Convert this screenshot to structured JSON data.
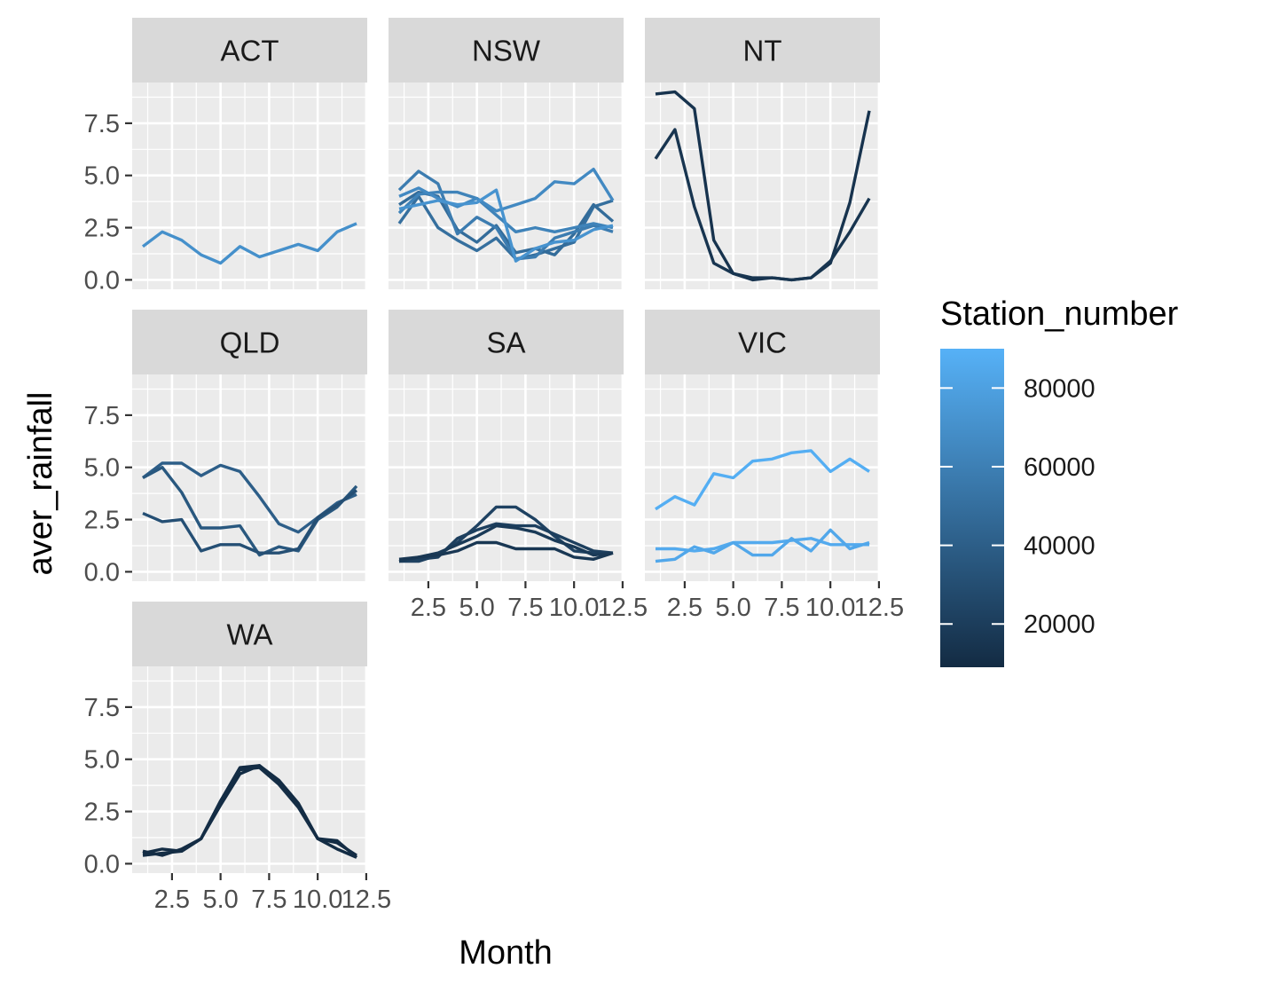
{
  "chart_data": {
    "type": "line",
    "layout": "facet_wrap",
    "xlabel": "Month",
    "ylabel": "aver_rainfall",
    "xlim": [
      0.45,
      12.55
    ],
    "ylim": [
      -0.45,
      9.45
    ],
    "x_ticks": [
      2.5,
      5.0,
      7.5,
      10.0,
      12.5
    ],
    "x_tick_labels": [
      "2.5",
      "5.0",
      "7.5",
      "10.0",
      "12.5"
    ],
    "y_ticks": [
      0.0,
      2.5,
      5.0,
      7.5
    ],
    "y_tick_labels": [
      "0.0",
      "2.5",
      "5.0",
      "7.5"
    ],
    "grid": true,
    "legend": {
      "title": "Station_number",
      "position": "right",
      "type": "colorbar",
      "range": [
        9000,
        90000
      ],
      "low_color": "#132B43",
      "high_color": "#56B1F7",
      "ticks": [
        20000,
        40000,
        60000,
        80000
      ],
      "tick_labels": [
        "20000",
        "40000",
        "60000",
        "80000"
      ]
    },
    "x": [
      1,
      2,
      3,
      4,
      5,
      6,
      7,
      8,
      9,
      10,
      11,
      12
    ],
    "panels": [
      {
        "label": "ACT",
        "series": [
          {
            "station": 70000,
            "values": [
              1.6,
              2.3,
              1.9,
              1.2,
              0.8,
              1.6,
              1.1,
              1.4,
              1.7,
              1.4,
              2.3,
              2.7
            ]
          }
        ]
      },
      {
        "label": "NSW",
        "series": [
          {
            "station": 50000,
            "values": [
              2.7,
              4.0,
              2.5,
              1.9,
              1.4,
              2.0,
              1.0,
              1.2,
              1.5,
              1.8,
              3.5,
              3.8
            ]
          },
          {
            "station": 48000,
            "values": [
              3.6,
              4.2,
              4.0,
              2.4,
              1.8,
              2.6,
              1.3,
              1.5,
              1.2,
              2.2,
              3.6,
              2.8
            ]
          },
          {
            "station": 58000,
            "values": [
              4.3,
              5.2,
              4.6,
              2.2,
              3.0,
              2.5,
              1.0,
              1.1,
              2.0,
              2.3,
              2.6,
              2.3
            ]
          },
          {
            "station": 62000,
            "values": [
              3.2,
              4.1,
              4.2,
              4.2,
              3.9,
              3.1,
              2.3,
              2.5,
              2.3,
              2.5,
              2.7,
              2.5
            ]
          },
          {
            "station": 66000,
            "values": [
              4.0,
              4.4,
              3.9,
              3.5,
              3.9,
              3.3,
              3.6,
              3.9,
              4.7,
              4.6,
              5.3,
              3.8
            ]
          },
          {
            "station": 72000,
            "values": [
              3.4,
              3.6,
              3.8,
              3.6,
              3.7,
              4.3,
              0.9,
              1.5,
              1.8,
              1.9,
              2.4,
              2.6
            ]
          }
        ]
      },
      {
        "label": "NT",
        "series": [
          {
            "station": 14000,
            "values": [
              8.9,
              9.0,
              8.2,
              1.9,
              0.3,
              0.0,
              0.1,
              0.0,
              0.1,
              0.8,
              3.7,
              8.1
            ]
          },
          {
            "station": 15000,
            "values": [
              5.8,
              7.2,
              3.5,
              0.8,
              0.3,
              0.1,
              0.1,
              0.0,
              0.1,
              0.9,
              2.3,
              3.9
            ]
          }
        ]
      },
      {
        "label": "QLD",
        "series": [
          {
            "station": 40000,
            "values": [
              4.5,
              5.2,
              5.2,
              4.6,
              5.1,
              4.8,
              3.6,
              2.3,
              1.9,
              2.6,
              3.3,
              3.7
            ]
          },
          {
            "station": 36000,
            "values": [
              4.5,
              5.0,
              3.8,
              2.1,
              2.1,
              2.2,
              0.8,
              1.2,
              1.0,
              2.5,
              3.1,
              4.1
            ]
          },
          {
            "station": 31000,
            "values": [
              2.8,
              2.4,
              2.5,
              1.0,
              1.3,
              1.3,
              0.9,
              0.9,
              1.1,
              2.6,
              3.2,
              3.9
            ]
          }
        ]
      },
      {
        "label": "SA",
        "series": [
          {
            "station": 23000,
            "values": [
              0.5,
              0.5,
              0.8,
              1.4,
              2.2,
              3.1,
              3.1,
              2.5,
              1.7,
              1.0,
              0.9,
              0.9
            ]
          },
          {
            "station": 21000,
            "values": [
              0.6,
              0.6,
              0.7,
              1.6,
              2.0,
              2.3,
              2.2,
              2.2,
              1.8,
              1.4,
              1.0,
              0.9
            ]
          },
          {
            "station": 18000,
            "values": [
              0.5,
              0.7,
              0.9,
              1.3,
              1.7,
              2.2,
              2.1,
              1.9,
              1.5,
              1.2,
              0.8,
              0.9
            ]
          },
          {
            "station": 16000,
            "values": [
              0.6,
              0.7,
              0.8,
              1.0,
              1.4,
              1.4,
              1.1,
              1.1,
              1.1,
              0.7,
              0.6,
              0.9
            ]
          }
        ]
      },
      {
        "label": "VIC",
        "series": [
          {
            "station": 88000,
            "values": [
              3.0,
              3.6,
              3.2,
              4.7,
              4.5,
              5.3,
              5.4,
              5.7,
              5.8,
              4.8,
              5.4,
              4.8
            ]
          },
          {
            "station": 86000,
            "values": [
              1.1,
              1.1,
              1.0,
              1.1,
              1.4,
              1.4,
              1.4,
              1.5,
              1.6,
              1.3,
              1.3,
              1.3
            ]
          },
          {
            "station": 84000,
            "values": [
              0.5,
              0.6,
              1.2,
              0.9,
              1.4,
              0.8,
              0.8,
              1.6,
              1.0,
              2.0,
              1.1,
              1.4
            ]
          }
        ]
      },
      {
        "label": "WA",
        "series": [
          {
            "station": 9000,
            "values": [
              0.6,
              0.4,
              0.7,
              1.2,
              3.0,
              4.6,
              4.7,
              3.9,
              2.8,
              1.2,
              1.0,
              0.4
            ]
          },
          {
            "station": 9500,
            "values": [
              0.5,
              0.7,
              0.6,
              1.2,
              2.8,
              4.3,
              4.7,
              4.0,
              2.9,
              1.2,
              0.7,
              0.3
            ]
          },
          {
            "station": 10000,
            "values": [
              0.4,
              0.5,
              0.6,
              1.2,
              3.0,
              4.5,
              4.6,
              3.8,
              2.7,
              1.2,
              1.1,
              0.3
            ]
          }
        ]
      }
    ]
  }
}
